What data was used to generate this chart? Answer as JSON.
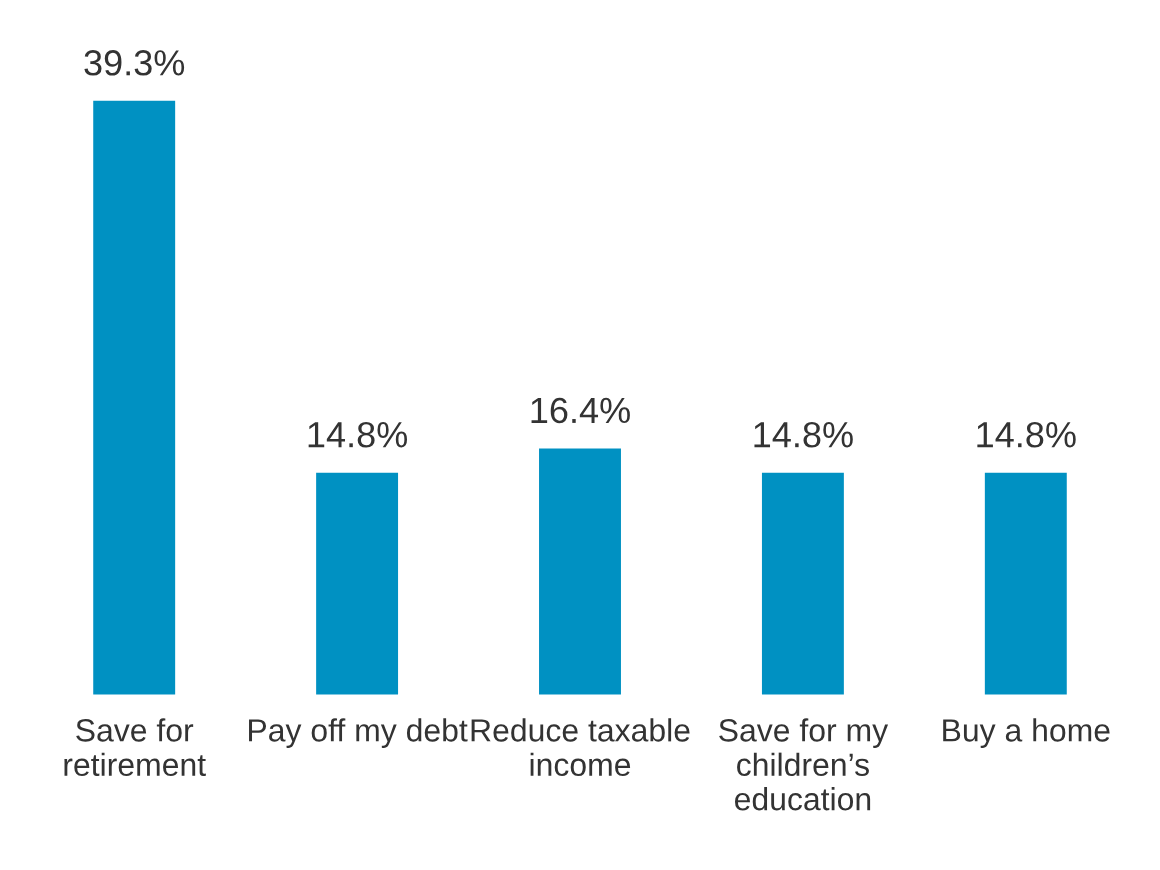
{
  "chart_data": {
    "type": "bar",
    "categories": [
      "Save for\nretirement",
      "Pay off my debt",
      "Reduce taxable\nincome",
      "Save for my\nchildren’s\neducation",
      "Buy a home"
    ],
    "values": [
      39.3,
      14.8,
      16.4,
      14.8,
      14.8
    ],
    "value_labels": [
      "39.3%",
      "14.8%",
      "16.4%",
      "14.8%",
      "14.8%"
    ],
    "color": "#0091c2",
    "grid": false,
    "legend": false
  }
}
